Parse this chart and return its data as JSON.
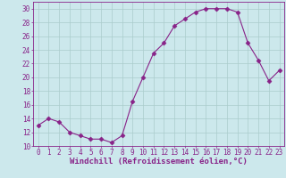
{
  "x": [
    0,
    1,
    2,
    3,
    4,
    5,
    6,
    7,
    8,
    9,
    10,
    11,
    12,
    13,
    14,
    15,
    16,
    17,
    18,
    19,
    20,
    21,
    22,
    23
  ],
  "y": [
    13,
    14,
    13.5,
    12,
    11.5,
    11,
    11,
    10.5,
    11.5,
    16.5,
    20,
    23.5,
    25,
    27.5,
    28.5,
    29.5,
    30,
    30,
    30,
    29.5,
    25,
    22.5,
    19.5,
    21
  ],
  "line_color": "#882288",
  "marker": "D",
  "marker_size": 2.5,
  "bg_color": "#cce8ec",
  "grid_color": "#aacccc",
  "xlabel": "Windchill (Refroidissement éolien,°C)",
  "xlim": [
    -0.5,
    23.5
  ],
  "ylim": [
    10,
    31
  ],
  "yticks": [
    10,
    12,
    14,
    16,
    18,
    20,
    22,
    24,
    26,
    28,
    30
  ],
  "xticks": [
    0,
    1,
    2,
    3,
    4,
    5,
    6,
    7,
    8,
    9,
    10,
    11,
    12,
    13,
    14,
    15,
    16,
    17,
    18,
    19,
    20,
    21,
    22,
    23
  ],
  "tick_label_fontsize": 5.5,
  "xlabel_fontsize": 6.5
}
